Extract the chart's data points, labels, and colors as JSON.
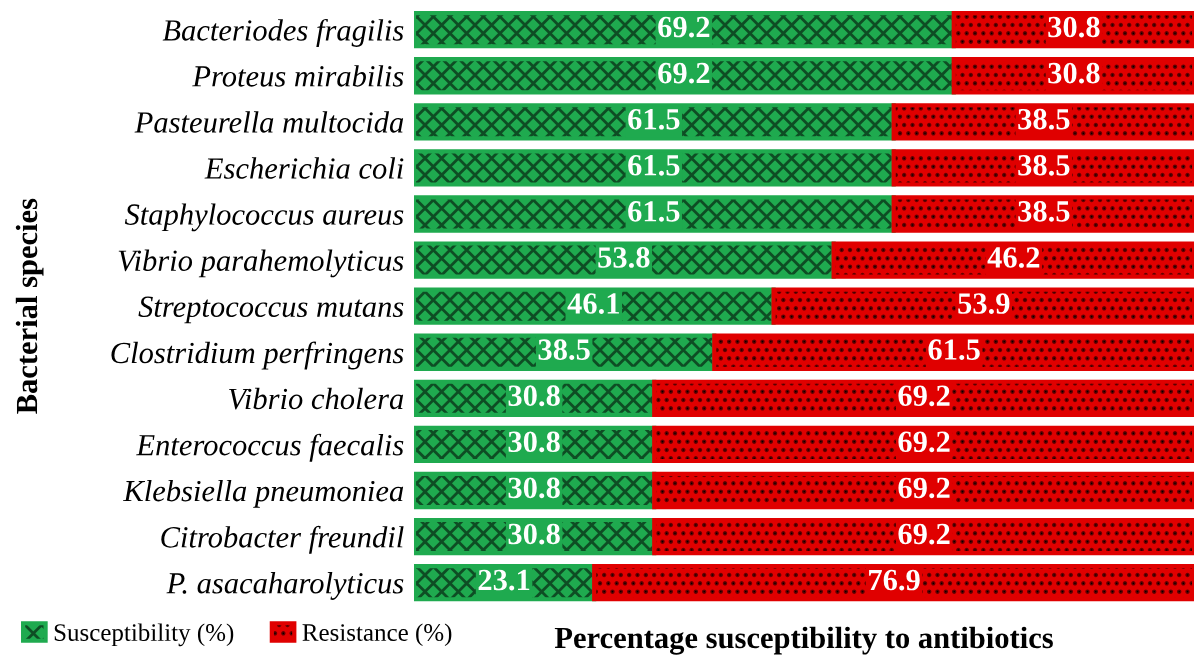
{
  "chart_data": {
    "type": "bar",
    "orientation": "horizontal",
    "stacked": true,
    "data_labels": true,
    "tick_labels": "y",
    "legend": "bottom left",
    "grid": false,
    "xlabel": "Percentage susceptibility to antibiotics",
    "ylabel": "Bacterial species",
    "categories": [
      "Bacteriodes fragilis",
      "Proteus mirabilis",
      "Pasteurella multocida",
      "Escherichia coli",
      "Staphylococcus aureus",
      "Vibrio parahemolyticus",
      "Streptococcus mutans",
      "Clostridium perfringens",
      "Vibrio cholera",
      "Enterococcus faecalis",
      "Klebsiella pneumoniea",
      "Citrobacter freundil",
      "P. asacaharolyticus"
    ],
    "series": [
      {
        "name": "Susceptibility (%)",
        "color": "#1faa4f",
        "values": [
          69.2,
          69.2,
          61.5,
          61.5,
          61.5,
          53.8,
          46.1,
          38.5,
          30.8,
          30.8,
          30.8,
          30.8,
          23.1
        ]
      },
      {
        "name": "Resistance (%)",
        "color": "#e00000",
        "values": [
          30.8,
          30.8,
          38.5,
          38.5,
          38.5,
          46.2,
          53.9,
          61.5,
          69.2,
          69.2,
          69.2,
          69.2,
          76.9
        ]
      }
    ]
  }
}
